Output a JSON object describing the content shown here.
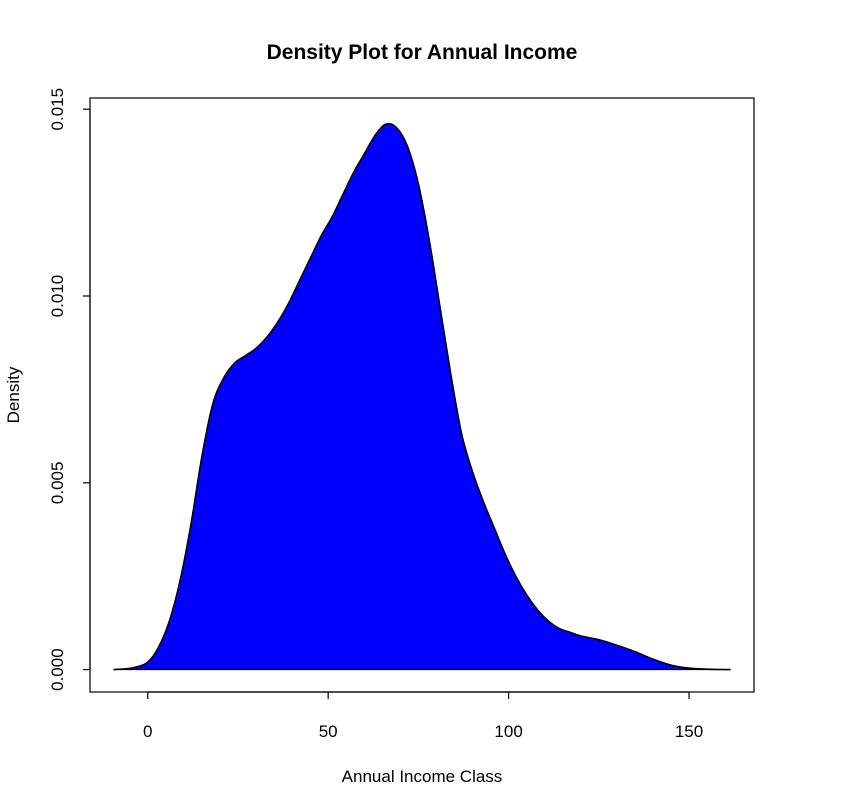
{
  "chart_data": {
    "type": "area",
    "title": "Density Plot for Annual Income",
    "xlabel": "Annual Income Class",
    "ylabel": "Density",
    "xlim": [
      -16,
      168
    ],
    "ylim": [
      -0.0006,
      0.0153
    ],
    "x_ticks": [
      0,
      50,
      100,
      150
    ],
    "x_tick_labels": [
      "0",
      "50",
      "100",
      "150"
    ],
    "y_ticks": [
      0.0,
      0.005,
      0.01,
      0.015
    ],
    "y_tick_labels": [
      "0.000",
      "0.005",
      "0.010",
      "0.015"
    ],
    "grid": false,
    "legend": "none",
    "fill_color": "#0000FF",
    "line_color": "#000000",
    "series": [
      {
        "x": [
          -9.5,
          -4,
          0,
          3,
          6,
          9,
          12,
          15,
          18,
          21,
          24,
          27,
          30,
          33,
          36,
          39,
          42,
          45,
          48,
          51,
          54,
          57,
          60,
          63,
          66,
          69,
          72,
          75,
          78,
          81,
          84,
          87,
          90,
          93,
          96,
          99,
          102,
          105,
          108,
          111,
          114,
          117,
          120,
          125,
          130,
          135,
          140,
          145,
          150,
          155,
          161.5
        ],
        "y": [
          0.0,
          5e-05,
          0.0002,
          0.0006,
          0.0013,
          0.0024,
          0.0039,
          0.0057,
          0.0071,
          0.0078,
          0.0082,
          0.0084,
          0.0086,
          0.0089,
          0.0093,
          0.0098,
          0.0104,
          0.011,
          0.0116,
          0.0121,
          0.0127,
          0.0133,
          0.0138,
          0.0143,
          0.0146,
          0.0145,
          0.014,
          0.013,
          0.0115,
          0.0097,
          0.0079,
          0.0063,
          0.0053,
          0.0045,
          0.0038,
          0.0031,
          0.0025,
          0.002,
          0.0016,
          0.0013,
          0.0011,
          0.001,
          0.0009,
          0.0008,
          0.00065,
          0.00048,
          0.00028,
          0.00012,
          4e-05,
          1e-05,
          0.0
        ]
      }
    ]
  }
}
